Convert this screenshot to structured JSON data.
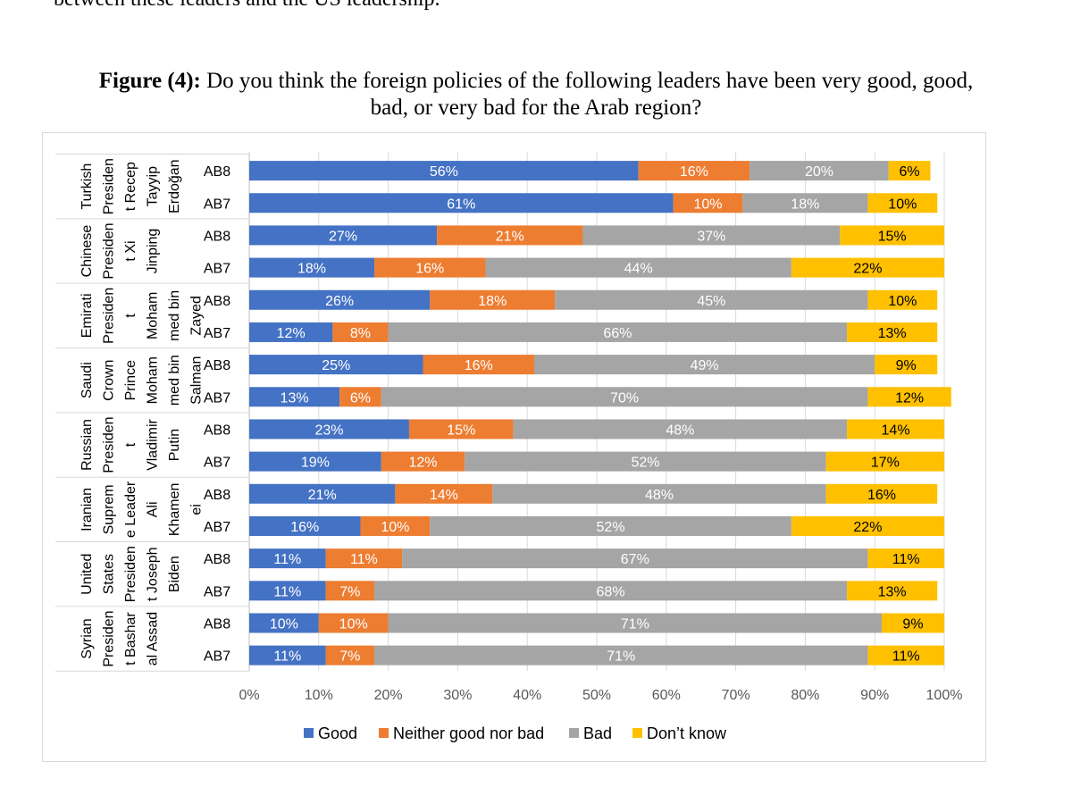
{
  "intro_text": "between these leaders and the US leadership.",
  "figure": {
    "label": "Figure (4):",
    "caption_line1": "Do you think the foreign policies of the following leaders have been very good, good,",
    "caption_line2": "bad, or very bad for the Arab region?"
  },
  "chart_data": {
    "type": "bar",
    "orientation": "horizontal",
    "stacked": true,
    "percent_stacked": true,
    "title": "Do you think the foreign policies of the following leaders have been very good, good, bad, or very bad for the Arab region?",
    "xlim": [
      0,
      100
    ],
    "x_ticks": [
      "0%",
      "10%",
      "20%",
      "30%",
      "40%",
      "50%",
      "60%",
      "70%",
      "80%",
      "90%",
      "100%"
    ],
    "legend_position": "bottom",
    "series": [
      {
        "name": "Good",
        "color": "#4472C4",
        "label_color": "#ffffff"
      },
      {
        "name": "Neither good nor bad",
        "color": "#ED7D31",
        "label_color": "#ffffff"
      },
      {
        "name": "Bad",
        "color": "#A5A5A5",
        "label_color": "#ffffff"
      },
      {
        "name": "Don’t know",
        "color": "#FFC000",
        "label_color": "#000000"
      }
    ],
    "groups": [
      {
        "label_lines": [
          "Turkish",
          "Presiden",
          "t Recep",
          "Tayyip",
          "Erdoğan"
        ],
        "rows": [
          {
            "wave": "AB8",
            "values": [
              56,
              16,
              20,
              6
            ]
          },
          {
            "wave": "AB7",
            "values": [
              61,
              10,
              18,
              10
            ]
          }
        ]
      },
      {
        "label_lines": [
          "Chinese",
          "Presiden",
          "t Xi",
          "Jinping"
        ],
        "rows": [
          {
            "wave": "AB8",
            "values": [
              27,
              21,
              37,
              15
            ]
          },
          {
            "wave": "AB7",
            "values": [
              18,
              16,
              44,
              22
            ]
          }
        ]
      },
      {
        "label_lines": [
          "Emirati",
          "Presiden",
          "t",
          "Moham",
          "med bin",
          "Zayed"
        ],
        "rows": [
          {
            "wave": "AB8",
            "values": [
              26,
              18,
              45,
              10
            ]
          },
          {
            "wave": "AB7",
            "values": [
              12,
              8,
              66,
              13
            ]
          }
        ]
      },
      {
        "label_lines": [
          "Saudi",
          "Crown",
          "Prince",
          "Moham",
          "med bin",
          "Salman"
        ],
        "rows": [
          {
            "wave": "AB8",
            "values": [
              25,
              16,
              49,
              9
            ]
          },
          {
            "wave": "AB7",
            "values": [
              13,
              6,
              70,
              12
            ]
          }
        ]
      },
      {
        "label_lines": [
          "Russian",
          "Presiden",
          "t",
          "Vladimir",
          "Putin"
        ],
        "rows": [
          {
            "wave": "AB8",
            "values": [
              23,
              15,
              48,
              14
            ]
          },
          {
            "wave": "AB7",
            "values": [
              19,
              12,
              52,
              17
            ]
          }
        ]
      },
      {
        "label_lines": [
          "Iranian",
          "Suprem",
          "e Leader",
          "Ali",
          "Khamen",
          "ei"
        ],
        "rows": [
          {
            "wave": "AB8",
            "values": [
              21,
              14,
              48,
              16
            ]
          },
          {
            "wave": "AB7",
            "values": [
              16,
              10,
              52,
              22
            ]
          }
        ]
      },
      {
        "label_lines": [
          "United",
          "States",
          "Presiden",
          "t Joseph",
          "Biden"
        ],
        "rows": [
          {
            "wave": "AB8",
            "values": [
              11,
              11,
              67,
              11
            ]
          },
          {
            "wave": "AB7",
            "values": [
              11,
              7,
              68,
              13
            ]
          }
        ]
      },
      {
        "label_lines": [
          "Syrian",
          "Presiden",
          "t Bashar",
          "al Assad"
        ],
        "rows": [
          {
            "wave": "AB8",
            "values": [
              10,
              10,
              71,
              9
            ]
          },
          {
            "wave": "AB7",
            "values": [
              11,
              7,
              71,
              11
            ]
          }
        ]
      }
    ]
  }
}
